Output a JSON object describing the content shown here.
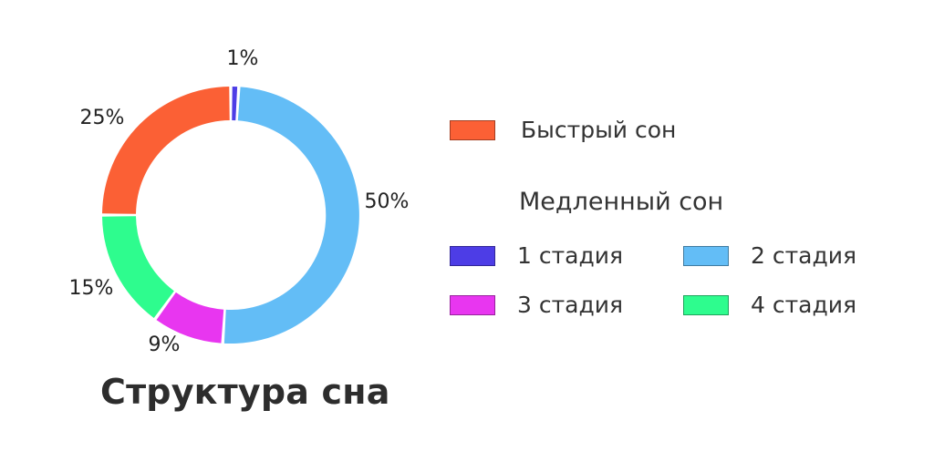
{
  "chart_data": {
    "type": "donut",
    "title": "Структура сна",
    "slices": [
      {
        "name": "1 стадия",
        "value": 1,
        "label": "1%",
        "color": "#4d3de6"
      },
      {
        "name": "2 стадия",
        "value": 50,
        "label": "50%",
        "color": "#63bdf6"
      },
      {
        "name": "3 стадия",
        "value": 9,
        "label": "9%",
        "color": "#e836f0"
      },
      {
        "name": "4 стадия",
        "value": 15,
        "label": "15%",
        "color": "#2efc8e"
      },
      {
        "name": "Быстрый сон",
        "value": 25,
        "label": "25%",
        "color": "#fb6035"
      }
    ],
    "legend": {
      "rem": {
        "label": "Быстрый сон",
        "color": "#fb6035"
      },
      "nrem_heading": "Медленный сон",
      "stages": [
        {
          "label": "1 стадия",
          "color": "#4d3de6"
        },
        {
          "label": "2 стадия",
          "color": "#63bdf6"
        },
        {
          "label": "3 стадия",
          "color": "#e836f0"
        },
        {
          "label": "4 стадия",
          "color": "#2efc8e"
        }
      ]
    }
  }
}
